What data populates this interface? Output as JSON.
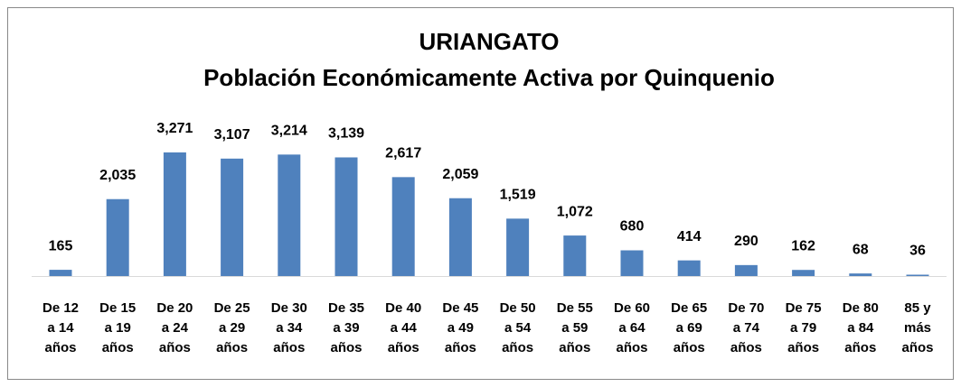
{
  "chart_data": {
    "type": "bar",
    "title": "URIANGATO",
    "subtitle": "Población Económicamente Activa por Quinquenio",
    "categories": [
      [
        "De 12",
        "a 14",
        "años"
      ],
      [
        "De 15",
        "a 19",
        "años"
      ],
      [
        "De 20",
        "a 24",
        "años"
      ],
      [
        "De 25",
        "a 29",
        "años"
      ],
      [
        "De 30",
        "a 34",
        "años"
      ],
      [
        "De 35",
        "a 39",
        "años"
      ],
      [
        "De 40",
        "a 44",
        "años"
      ],
      [
        "De 45",
        "a 49",
        "años"
      ],
      [
        "De 50",
        "a 54",
        "años"
      ],
      [
        "De 55",
        "a 59",
        "años"
      ],
      [
        "De 60",
        "a 64",
        "años"
      ],
      [
        "De 65",
        "a 69",
        "años"
      ],
      [
        "De 70",
        "a 74",
        "años"
      ],
      [
        "De 75",
        "a 79",
        "años"
      ],
      [
        "De 80",
        "a 84",
        "años"
      ],
      [
        "85 y",
        "más",
        "años"
      ]
    ],
    "values": [
      165,
      2035,
      3271,
      3107,
      3214,
      3139,
      2617,
      2059,
      1519,
      1072,
      680,
      414,
      290,
      162,
      68,
      36
    ],
    "value_labels": [
      "165",
      "2,035",
      "3,271",
      "3,107",
      "3,214",
      "3,139",
      "2,617",
      "2,059",
      "1,519",
      "1,072",
      "680",
      "414",
      "290",
      "162",
      "68",
      "36"
    ],
    "color": "#4f81bd"
  }
}
